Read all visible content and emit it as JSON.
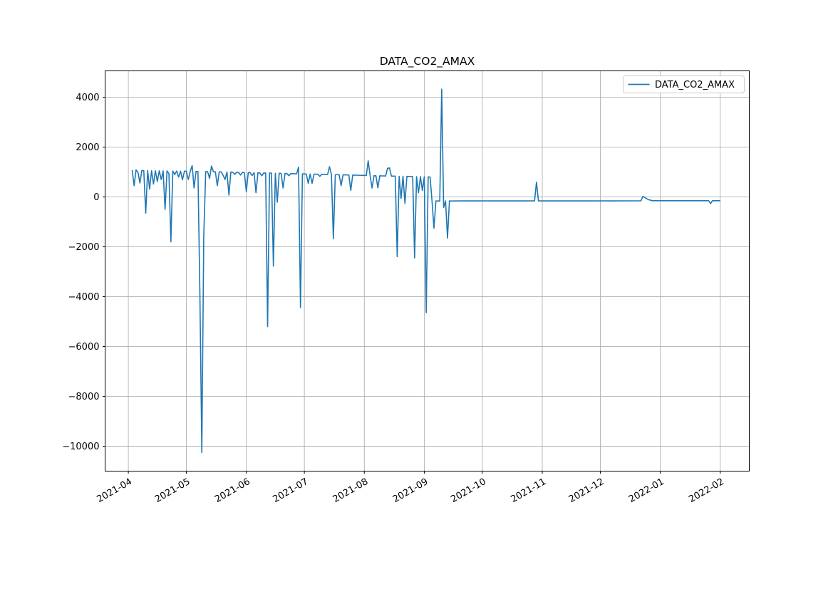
{
  "figure": {
    "title": "DATA_CO2_AMAX",
    "background_color": "#ffffff"
  },
  "legend": {
    "position": "upper right",
    "entries": [
      {
        "label": "DATA_CO2_AMAX",
        "color": "#1f77b4"
      }
    ]
  },
  "chart_data": {
    "type": "line",
    "title": "DATA_CO2_AMAX",
    "xlabel": "",
    "ylabel": "",
    "grid": true,
    "grid_color": "#b0b0b0",
    "spine_color": "#000000",
    "legend_position": "upper right",
    "x_type": "date",
    "xlim": [
      "2021-03-20",
      "2022-02-16"
    ],
    "ylim": [
      -11000,
      5060
    ],
    "xticks": [
      {
        "date": "2021-04-01",
        "label": "2021-04"
      },
      {
        "date": "2021-05-01",
        "label": "2021-05"
      },
      {
        "date": "2021-06-01",
        "label": "2021-06"
      },
      {
        "date": "2021-07-01",
        "label": "2021-07"
      },
      {
        "date": "2021-08-01",
        "label": "2021-08"
      },
      {
        "date": "2021-09-01",
        "label": "2021-09"
      },
      {
        "date": "2021-10-01",
        "label": "2021-10"
      },
      {
        "date": "2021-11-01",
        "label": "2021-11"
      },
      {
        "date": "2021-12-01",
        "label": "2021-12"
      },
      {
        "date": "2022-01-01",
        "label": "2022-01"
      },
      {
        "date": "2022-02-01",
        "label": "2022-02"
      }
    ],
    "yticks": [
      {
        "value": 4000,
        "label": "4000"
      },
      {
        "value": 2000,
        "label": "2000"
      },
      {
        "value": 0,
        "label": "0"
      },
      {
        "value": -2000,
        "label": "−2000"
      },
      {
        "value": -4000,
        "label": "−4000"
      },
      {
        "value": -6000,
        "label": "−6000"
      },
      {
        "value": -8000,
        "label": "−8000"
      },
      {
        "value": -10000,
        "label": "−10000"
      }
    ],
    "series": [
      {
        "name": "DATA_CO2_AMAX",
        "color": "#1f77b4",
        "points": [
          [
            "2021-04-03",
            1075
          ],
          [
            "2021-04-04",
            455
          ],
          [
            "2021-04-05",
            1090
          ],
          [
            "2021-04-06",
            980
          ],
          [
            "2021-04-07",
            560
          ],
          [
            "2021-04-08",
            1065
          ],
          [
            "2021-04-09",
            1050
          ],
          [
            "2021-04-10",
            -655
          ],
          [
            "2021-04-11",
            1060
          ],
          [
            "2021-04-12",
            315
          ],
          [
            "2021-04-13",
            1055
          ],
          [
            "2021-04-14",
            520
          ],
          [
            "2021-04-15",
            1050
          ],
          [
            "2021-04-16",
            620
          ],
          [
            "2021-04-17",
            1050
          ],
          [
            "2021-04-18",
            700
          ],
          [
            "2021-04-19",
            1045
          ],
          [
            "2021-04-20",
            -500
          ],
          [
            "2021-04-21",
            1045
          ],
          [
            "2021-04-22",
            940
          ],
          [
            "2021-04-23",
            -1800
          ],
          [
            "2021-04-24",
            1040
          ],
          [
            "2021-04-25",
            900
          ],
          [
            "2021-04-26",
            1040
          ],
          [
            "2021-04-27",
            800
          ],
          [
            "2021-04-28",
            1035
          ],
          [
            "2021-04-29",
            690
          ],
          [
            "2021-04-30",
            1035
          ],
          [
            "2021-05-01",
            1030
          ],
          [
            "2021-05-02",
            700
          ],
          [
            "2021-05-03",
            1030
          ],
          [
            "2021-05-04",
            1260
          ],
          [
            "2021-05-05",
            360
          ],
          [
            "2021-05-06",
            1025
          ],
          [
            "2021-05-07",
            1020
          ],
          [
            "2021-05-08",
            -3900
          ],
          [
            "2021-05-09",
            -10250
          ],
          [
            "2021-05-10",
            -1570
          ],
          [
            "2021-05-11",
            1020
          ],
          [
            "2021-05-12",
            1015
          ],
          [
            "2021-05-13",
            745
          ],
          [
            "2021-05-14",
            1240
          ],
          [
            "2021-05-15",
            1015
          ],
          [
            "2021-05-16",
            1010
          ],
          [
            "2021-05-17",
            455
          ],
          [
            "2021-05-18",
            1010
          ],
          [
            "2021-05-19",
            1005
          ],
          [
            "2021-05-20",
            870
          ],
          [
            "2021-05-21",
            700
          ],
          [
            "2021-05-22",
            1000
          ],
          [
            "2021-05-23",
            75
          ],
          [
            "2021-05-24",
            1000
          ],
          [
            "2021-05-25",
            995
          ],
          [
            "2021-05-26",
            905
          ],
          [
            "2021-05-27",
            990
          ],
          [
            "2021-05-28",
            985
          ],
          [
            "2021-05-29",
            880
          ],
          [
            "2021-05-30",
            985
          ],
          [
            "2021-05-31",
            980
          ],
          [
            "2021-06-01",
            215
          ],
          [
            "2021-06-02",
            980
          ],
          [
            "2021-06-03",
            975
          ],
          [
            "2021-06-04",
            860
          ],
          [
            "2021-06-05",
            975
          ],
          [
            "2021-06-06",
            170
          ],
          [
            "2021-06-07",
            970
          ],
          [
            "2021-06-08",
            965
          ],
          [
            "2021-06-09",
            850
          ],
          [
            "2021-06-10",
            965
          ],
          [
            "2021-06-11",
            960
          ],
          [
            "2021-06-12",
            -5200
          ],
          [
            "2021-06-13",
            960
          ],
          [
            "2021-06-14",
            955
          ],
          [
            "2021-06-15",
            -2775
          ],
          [
            "2021-06-16",
            955
          ],
          [
            "2021-06-17",
            -210
          ],
          [
            "2021-06-18",
            950
          ],
          [
            "2021-06-19",
            945
          ],
          [
            "2021-06-20",
            360
          ],
          [
            "2021-06-21",
            945
          ],
          [
            "2021-06-22",
            940
          ],
          [
            "2021-06-23",
            855
          ],
          [
            "2021-06-24",
            940
          ],
          [
            "2021-06-25",
            935
          ],
          [
            "2021-06-26",
            930
          ],
          [
            "2021-06-27",
            930
          ],
          [
            "2021-06-28",
            1195
          ],
          [
            "2021-06-29",
            -4440
          ],
          [
            "2021-06-30",
            925
          ],
          [
            "2021-07-01",
            925
          ],
          [
            "2021-07-02",
            920
          ],
          [
            "2021-07-03",
            545
          ],
          [
            "2021-07-04",
            920
          ],
          [
            "2021-07-05",
            550
          ],
          [
            "2021-07-06",
            915
          ],
          [
            "2021-07-07",
            915
          ],
          [
            "2021-07-08",
            910
          ],
          [
            "2021-07-09",
            830
          ],
          [
            "2021-07-10",
            910
          ],
          [
            "2021-07-11",
            905
          ],
          [
            "2021-07-12",
            905
          ],
          [
            "2021-07-13",
            900
          ],
          [
            "2021-07-14",
            1215
          ],
          [
            "2021-07-15",
            900
          ],
          [
            "2021-07-16",
            -1680
          ],
          [
            "2021-07-17",
            895
          ],
          [
            "2021-07-18",
            895
          ],
          [
            "2021-07-19",
            890
          ],
          [
            "2021-07-20",
            455
          ],
          [
            "2021-07-21",
            890
          ],
          [
            "2021-07-22",
            885
          ],
          [
            "2021-07-23",
            885
          ],
          [
            "2021-07-24",
            880
          ],
          [
            "2021-07-25",
            265
          ],
          [
            "2021-07-26",
            880
          ],
          [
            "2021-07-27",
            875
          ],
          [
            "2021-07-28",
            875
          ],
          [
            "2021-07-29",
            870
          ],
          [
            "2021-07-30",
            870
          ],
          [
            "2021-07-31",
            865
          ],
          [
            "2021-08-01",
            865
          ],
          [
            "2021-08-02",
            860
          ],
          [
            "2021-08-03",
            1450
          ],
          [
            "2021-08-04",
            855
          ],
          [
            "2021-08-05",
            360
          ],
          [
            "2021-08-06",
            855
          ],
          [
            "2021-08-07",
            850
          ],
          [
            "2021-08-08",
            365
          ],
          [
            "2021-08-09",
            850
          ],
          [
            "2021-08-10",
            845
          ],
          [
            "2021-08-11",
            845
          ],
          [
            "2021-08-12",
            840
          ],
          [
            "2021-08-13",
            1150
          ],
          [
            "2021-08-14",
            1165
          ],
          [
            "2021-08-15",
            840
          ],
          [
            "2021-08-16",
            835
          ],
          [
            "2021-08-17",
            835
          ],
          [
            "2021-08-18",
            -2395
          ],
          [
            "2021-08-19",
            830
          ],
          [
            "2021-08-20",
            -60
          ],
          [
            "2021-08-21",
            830
          ],
          [
            "2021-08-22",
            -260
          ],
          [
            "2021-08-23",
            825
          ],
          [
            "2021-08-24",
            825
          ],
          [
            "2021-08-25",
            820
          ],
          [
            "2021-08-26",
            820
          ],
          [
            "2021-08-27",
            -2445
          ],
          [
            "2021-08-28",
            815
          ],
          [
            "2021-08-29",
            170
          ],
          [
            "2021-08-30",
            815
          ],
          [
            "2021-08-31",
            265
          ],
          [
            "2021-09-01",
            810
          ],
          [
            "2021-09-02",
            -4640
          ],
          [
            "2021-09-03",
            805
          ],
          [
            "2021-09-04",
            800
          ],
          [
            "2021-09-05",
            -165
          ],
          [
            "2021-09-06",
            -1250
          ],
          [
            "2021-09-07",
            -160
          ],
          [
            "2021-09-08",
            -160
          ],
          [
            "2021-09-09",
            -160
          ],
          [
            "2021-09-10",
            4330
          ],
          [
            "2021-09-11",
            -420
          ],
          [
            "2021-09-12",
            -160
          ],
          [
            "2021-09-13",
            -1650
          ],
          [
            "2021-09-14",
            -160
          ],
          [
            "2021-09-15",
            -160
          ],
          [
            "2021-09-20",
            -158
          ],
          [
            "2021-09-30",
            -158
          ],
          [
            "2021-10-10",
            -158
          ],
          [
            "2021-10-20",
            -158
          ],
          [
            "2021-10-28",
            -158
          ],
          [
            "2021-10-29",
            595
          ],
          [
            "2021-10-30",
            -158
          ],
          [
            "2021-11-10",
            -157
          ],
          [
            "2021-11-20",
            -157
          ],
          [
            "2021-11-30",
            -156
          ],
          [
            "2021-12-10",
            -156
          ],
          [
            "2021-12-20",
            -155
          ],
          [
            "2021-12-22",
            -155
          ],
          [
            "2021-12-23",
            25
          ],
          [
            "2021-12-24",
            -20
          ],
          [
            "2021-12-25",
            -70
          ],
          [
            "2021-12-26",
            -110
          ],
          [
            "2021-12-28",
            -150
          ],
          [
            "2022-01-05",
            -150
          ],
          [
            "2022-01-15",
            -150
          ],
          [
            "2022-01-26",
            -150
          ],
          [
            "2022-01-27",
            -265
          ],
          [
            "2022-01-28",
            -150
          ],
          [
            "2022-02-01",
            -150
          ]
        ]
      }
    ]
  }
}
